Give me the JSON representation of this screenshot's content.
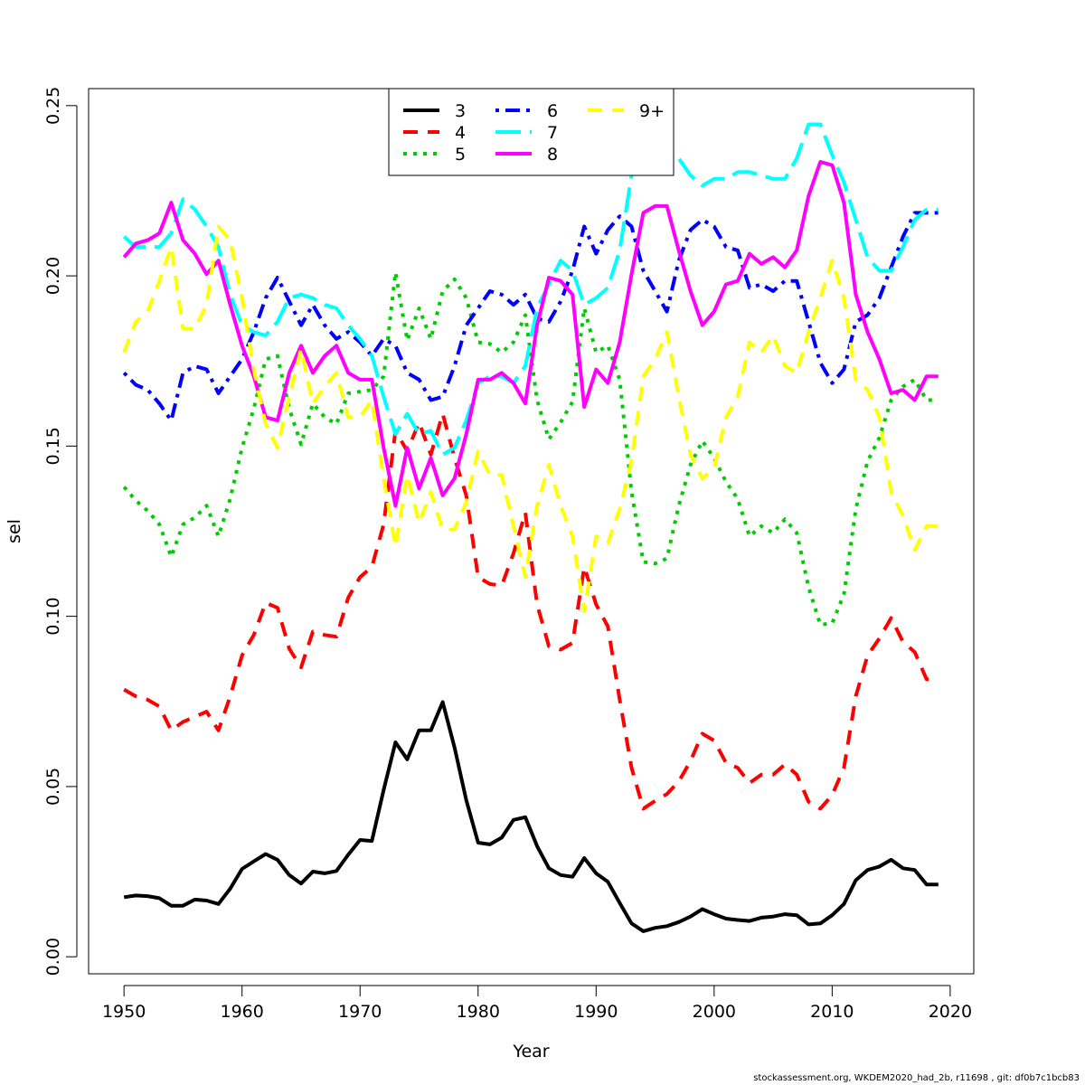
{
  "chart_data": {
    "type": "line",
    "xlabel": "Year",
    "ylabel": "sel",
    "xlim": [
      1947,
      2022
    ],
    "ylim": [
      -0.005,
      0.255
    ],
    "xticks": [
      1950,
      1960,
      1970,
      1980,
      1990,
      2000,
      2010,
      2020
    ],
    "yticks": [
      0.0,
      0.05,
      0.1,
      0.15,
      0.2,
      0.25
    ],
    "ytick_labels": [
      "0.00",
      "0.05",
      "0.10",
      "0.15",
      "0.20",
      "0.25"
    ],
    "grid": false,
    "legend_position": "top-center",
    "x": [
      1950,
      1951,
      1952,
      1953,
      1954,
      1955,
      1956,
      1957,
      1958,
      1959,
      1960,
      1961,
      1962,
      1963,
      1964,
      1965,
      1966,
      1967,
      1968,
      1969,
      1970,
      1971,
      1972,
      1973,
      1974,
      1975,
      1976,
      1977,
      1978,
      1979,
      1980,
      1981,
      1982,
      1983,
      1984,
      1985,
      1986,
      1987,
      1988,
      1989,
      1990,
      1991,
      1992,
      1993,
      1994,
      1995,
      1996,
      1997,
      1998,
      1999,
      2000,
      2001,
      2002,
      2003,
      2004,
      2005,
      2006,
      2007,
      2008,
      2009,
      2010,
      2011,
      2012,
      2013,
      2014,
      2015,
      2016,
      2017,
      2018,
      2019
    ],
    "series": [
      {
        "name": "3",
        "color": "#000000",
        "dash": "solid",
        "values": [
          0.0175,
          0.018,
          0.0178,
          0.0172,
          0.015,
          0.015,
          0.0168,
          0.0165,
          0.0155,
          0.02,
          0.0258,
          0.028,
          0.0302,
          0.0285,
          0.024,
          0.0215,
          0.025,
          0.0245,
          0.0252,
          0.03,
          0.0343,
          0.034,
          0.049,
          0.063,
          0.058,
          0.0665,
          0.0665,
          0.0748,
          0.0615,
          0.046,
          0.0335,
          0.033,
          0.035,
          0.0402,
          0.041,
          0.0325,
          0.026,
          0.024,
          0.0235,
          0.029,
          0.0245,
          0.022,
          0.0158,
          0.0098,
          0.0075,
          0.0085,
          0.009,
          0.0102,
          0.0118,
          0.014,
          0.0125,
          0.0112,
          0.0108,
          0.0105,
          0.0115,
          0.0118,
          0.0125,
          0.0122,
          0.0095,
          0.0098,
          0.0122,
          0.0155,
          0.0225,
          0.0255,
          0.0265,
          0.0285,
          0.026,
          0.0255,
          0.0212,
          0.0212
        ]
      },
      {
        "name": "4",
        "color": "#ff0000",
        "dash": "dashed",
        "values": [
          0.0785,
          0.0765,
          0.0755,
          0.0735,
          0.0665,
          0.069,
          0.0705,
          0.072,
          0.0665,
          0.0765,
          0.0885,
          0.0945,
          0.104,
          0.1025,
          0.0905,
          0.085,
          0.0955,
          0.0945,
          0.094,
          0.1055,
          0.1115,
          0.1145,
          0.127,
          0.1545,
          0.1485,
          0.157,
          0.1475,
          0.1595,
          0.1465,
          0.1355,
          0.1115,
          0.1095,
          0.109,
          0.1185,
          0.1305,
          0.1035,
          0.0912,
          0.0902,
          0.0922,
          0.1145,
          0.1035,
          0.097,
          0.0755,
          0.0555,
          0.0435,
          0.0458,
          0.0478,
          0.0515,
          0.0575,
          0.0655,
          0.0635,
          0.057,
          0.0555,
          0.051,
          0.0535,
          0.0535,
          0.0565,
          0.0535,
          0.0455,
          0.0435,
          0.0475,
          0.0555,
          0.0765,
          0.0885,
          0.0935,
          0.0995,
          0.0925,
          0.0895,
          0.0815,
          0.0815
        ]
      },
      {
        "name": "5",
        "color": "#00cd00",
        "dash": "dotted",
        "values": [
          0.138,
          0.134,
          0.131,
          0.127,
          0.1175,
          0.127,
          0.129,
          0.1325,
          0.1235,
          0.1345,
          0.1495,
          0.161,
          0.1755,
          0.1765,
          0.161,
          0.1505,
          0.1625,
          0.1585,
          0.1565,
          0.1655,
          0.166,
          0.1665,
          0.1705,
          0.201,
          0.181,
          0.1905,
          0.1815,
          0.1955,
          0.199,
          0.1935,
          0.1805,
          0.18,
          0.1775,
          0.1805,
          0.1885,
          0.1635,
          0.152,
          0.157,
          0.163,
          0.1905,
          0.1775,
          0.1795,
          0.1695,
          0.1365,
          0.116,
          0.1155,
          0.117,
          0.1325,
          0.1445,
          0.1515,
          0.1465,
          0.1395,
          0.1345,
          0.1235,
          0.1265,
          0.1245,
          0.1285,
          0.1245,
          0.1085,
          0.0975,
          0.098,
          0.1065,
          0.1315,
          0.1455,
          0.1525,
          0.1635,
          0.1675,
          0.1695,
          0.1635,
          0.1635
        ]
      },
      {
        "name": "6",
        "color": "#0000ff",
        "dash": "dotdash",
        "values": [
          0.1715,
          0.168,
          0.1665,
          0.1625,
          0.1575,
          0.1715,
          0.1735,
          0.1725,
          0.1655,
          0.1705,
          0.1755,
          0.1835,
          0.1935,
          0.1995,
          0.1925,
          0.1855,
          0.1915,
          0.1855,
          0.1815,
          0.1835,
          0.1805,
          0.1765,
          0.1815,
          0.1795,
          0.1715,
          0.1695,
          0.1635,
          0.1645,
          0.1735,
          0.1855,
          0.1905,
          0.1955,
          0.1945,
          0.1915,
          0.1945,
          0.1875,
          0.1865,
          0.1925,
          0.2015,
          0.2145,
          0.2065,
          0.2135,
          0.2175,
          0.2145,
          0.2015,
          0.1955,
          0.1895,
          0.2045,
          0.2135,
          0.2165,
          0.2145,
          0.2085,
          0.2075,
          0.1965,
          0.1975,
          0.1955,
          0.1985,
          0.1985,
          0.1865,
          0.1745,
          0.1685,
          0.1725,
          0.1865,
          0.1885,
          0.1935,
          0.2025,
          0.2115,
          0.2185,
          0.2185,
          0.2185
        ]
      },
      {
        "name": "7",
        "color": "#00ffff",
        "dash": "longdash",
        "values": [
          0.2115,
          0.2085,
          0.2085,
          0.2085,
          0.2125,
          0.2225,
          0.2195,
          0.2145,
          0.2085,
          0.1945,
          0.1855,
          0.1835,
          0.1825,
          0.1865,
          0.1935,
          0.1945,
          0.1935,
          0.1915,
          0.1905,
          0.1855,
          0.1815,
          0.1765,
          0.1645,
          0.1535,
          0.1595,
          0.1535,
          0.1545,
          0.1475,
          0.1495,
          0.1575,
          0.1685,
          0.1705,
          0.1705,
          0.1685,
          0.1735,
          0.1905,
          0.1975,
          0.2045,
          0.2015,
          0.1915,
          0.1935,
          0.1965,
          0.2075,
          0.2295,
          0.2325,
          0.2355,
          0.2315,
          0.2345,
          0.2295,
          0.2265,
          0.2285,
          0.2285,
          0.2305,
          0.2305,
          0.2295,
          0.2285,
          0.2285,
          0.2345,
          0.2445,
          0.2445,
          0.2355,
          0.2275,
          0.2165,
          0.2055,
          0.2015,
          0.2015,
          0.2085,
          0.2165,
          0.2195,
          0.2195
        ]
      },
      {
        "name": "8",
        "color": "#ff00ff",
        "dash": "solid",
        "values": [
          0.2055,
          0.2095,
          0.2105,
          0.2125,
          0.2215,
          0.2105,
          0.2065,
          0.2005,
          0.2045,
          0.1915,
          0.1795,
          0.1705,
          0.1585,
          0.1575,
          0.1715,
          0.1795,
          0.1715,
          0.1765,
          0.1795,
          0.1715,
          0.1695,
          0.1695,
          0.1495,
          0.1325,
          0.1495,
          0.1375,
          0.1465,
          0.1355,
          0.1405,
          0.1535,
          0.1695,
          0.1695,
          0.1715,
          0.1685,
          0.1625,
          0.1855,
          0.1995,
          0.1985,
          0.1945,
          0.1615,
          0.1725,
          0.1685,
          0.1805,
          0.2005,
          0.2185,
          0.2205,
          0.2205,
          0.2075,
          0.1955,
          0.1855,
          0.1895,
          0.1975,
          0.1985,
          0.2065,
          0.2035,
          0.2055,
          0.2025,
          0.2075,
          0.2235,
          0.2335,
          0.2325,
          0.2215,
          0.1945,
          0.1835,
          0.1755,
          0.1655,
          0.1665,
          0.1635,
          0.1705,
          0.1705
        ]
      },
      {
        "name": "9+",
        "color": "#ffff00",
        "dash": "dashed",
        "values": [
          0.1775,
          0.1865,
          0.1895,
          0.1985,
          0.2085,
          0.1845,
          0.1845,
          0.1915,
          0.2145,
          0.2105,
          0.1935,
          0.1725,
          0.1565,
          0.1495,
          0.1645,
          0.1785,
          0.1625,
          0.1675,
          0.1715,
          0.1585,
          0.1585,
          0.1635,
          0.1405,
          0.1205,
          0.1415,
          0.1275,
          0.1365,
          0.1255,
          0.1255,
          0.1335,
          0.1485,
          0.1415,
          0.1415,
          0.1265,
          0.1115,
          0.1325,
          0.1445,
          0.1325,
          0.1235,
          0.1015,
          0.1235,
          0.1215,
          0.1315,
          0.1455,
          0.1705,
          0.1755,
          0.1835,
          0.1645,
          0.1475,
          0.1405,
          0.1435,
          0.1585,
          0.1645,
          0.1805,
          0.1775,
          0.1825,
          0.1735,
          0.1715,
          0.1835,
          0.1935,
          0.2045,
          0.1935,
          0.1695,
          0.1665,
          0.1585,
          0.1365,
          0.1295,
          0.1195,
          0.1265,
          0.1265
        ]
      }
    ]
  },
  "footer": "stockassessment.org, WKDEM2020_had_2b, r11698 , git: df0b7c1bcb83"
}
